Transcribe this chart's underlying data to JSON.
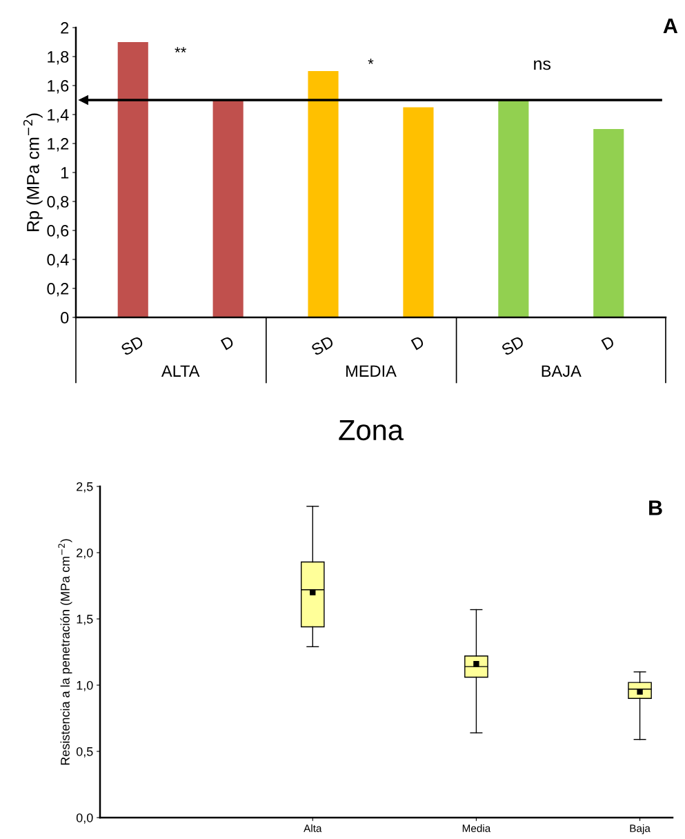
{
  "chart_data": [
    {
      "type": "bar",
      "xlabel": "Zona",
      "ylabel": "Rp (MPa cm$^{−2}$)",
      "categories": [
        "SD",
        "D",
        "SD",
        "D",
        "SD",
        "D"
      ],
      "values": [
        1.9,
        1.5,
        1.7,
        1.45,
        1.5,
        1.3
      ],
      "colors": [
        "#c0504d",
        "#c0504d",
        "#ffc000",
        "#ffc000",
        "#92d050",
        "#92d050"
      ],
      "ylim": [
        0,
        2
      ],
      "yticks": [
        0,
        {
          "value": 0.2,
          "label": "0,2"
        },
        {
          "value": 0.4,
          "label": "0,4"
        },
        {
          "value": 0.6,
          "label": "0,6"
        },
        {
          "value": 0.8,
          "label": "0,8"
        },
        1,
        {
          "value": 1.2,
          "label": "1,2"
        },
        {
          "value": 1.4,
          "label": "1,4"
        },
        {
          "value": 1.6,
          "label": "1,6"
        },
        {
          "value": 1.8,
          "label": "1,8"
        },
        2
      ],
      "ref_lines": [
        {
          "axis": "y",
          "value": 1.5,
          "color": "#000000"
        }
      ],
      "annotations": [
        "**",
        "*",
        "ns",
        "A",
        "ALTA",
        "MEDIA",
        "BAJA"
      ],
      "grid": false
    },
    {
      "type": "box",
      "ylabel": "Resistencia a la penetración (MPa cm$^{−2}$)",
      "categories": [
        "Alta",
        "Media",
        "Baja"
      ],
      "boxes": [
        {
          "low": 1.29,
          "q1": 1.44,
          "median": 1.72,
          "q3": 1.93,
          "high": 2.35,
          "mean": 1.7
        },
        {
          "low": 0.64,
          "q1": 1.06,
          "median": 1.14,
          "q3": 1.22,
          "high": 1.57,
          "mean": 1.16
        },
        {
          "low": 0.59,
          "q1": 0.9,
          "median": 0.97,
          "q3": 1.02,
          "high": 1.1,
          "mean": 0.95
        }
      ],
      "color": "#ffff99",
      "ylim": [
        0,
        2.5
      ],
      "yticks": [
        {
          "value": 0,
          "label": "0,0"
        },
        {
          "value": 0.5,
          "label": "0,5"
        },
        {
          "value": 1.0,
          "label": "1,0"
        },
        {
          "value": 1.5,
          "label": "1,5"
        },
        {
          "value": 2.0,
          "label": "2,0"
        },
        {
          "value": 2.5,
          "label": "2,5"
        }
      ],
      "annotations": [
        "B"
      ],
      "grid": false
    }
  ]
}
